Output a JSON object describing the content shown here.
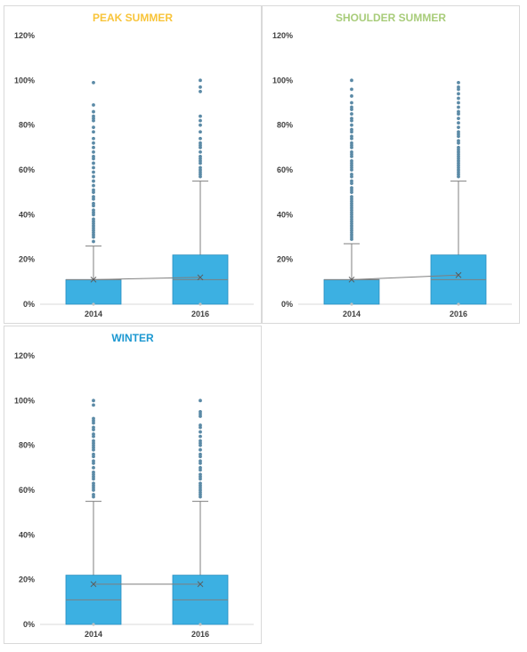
{
  "colors": {
    "box_fill": "#3cb0e2",
    "box_stroke": "#2a8fc0",
    "outlier": "#5b8aa6",
    "whisker": "#7f7f7f",
    "axis": "#d9d9d9"
  },
  "chart_data": [
    {
      "type": "box",
      "title": "PEAK SUMMER",
      "title_color": "#f8c43a",
      "categories": [
        "2014",
        "2016"
      ],
      "ylim": [
        0,
        120
      ],
      "yticks": [
        0,
        20,
        40,
        60,
        80,
        100,
        120
      ],
      "ytick_labels": [
        "0%",
        "20%",
        "40%",
        "60%",
        "80%",
        "100%",
        "120%"
      ],
      "boxes": [
        {
          "q1": 0,
          "median": 11,
          "q3": 11,
          "whisker_low": 0,
          "whisker_high": 26,
          "mean": 11,
          "outliers": [
            28,
            30,
            31,
            32,
            33,
            34,
            35,
            36,
            37,
            38,
            40,
            41,
            42,
            44,
            45,
            47,
            48,
            50,
            51,
            53,
            55,
            57,
            59,
            61,
            63,
            65,
            66,
            68,
            70,
            72,
            74,
            77,
            79,
            82,
            83,
            84,
            86,
            89,
            99
          ]
        },
        {
          "q1": 0,
          "median": 11,
          "q3": 22,
          "whisker_low": 0,
          "whisker_high": 55,
          "mean": 12,
          "outliers": [
            57,
            58,
            59,
            60,
            61,
            63,
            64,
            65,
            66,
            68,
            70,
            71,
            72,
            74,
            77,
            80,
            82,
            84,
            95,
            97,
            100
          ]
        }
      ]
    },
    {
      "type": "box",
      "title": "SHOULDER SUMMER",
      "title_color": "#a8cc7a",
      "categories": [
        "2014",
        "2016"
      ],
      "ylim": [
        0,
        120
      ],
      "yticks": [
        0,
        20,
        40,
        60,
        80,
        100,
        120
      ],
      "ytick_labels": [
        "0%",
        "20%",
        "40%",
        "60%",
        "80%",
        "100%",
        "120%"
      ],
      "boxes": [
        {
          "q1": 0,
          "median": 11,
          "q3": 11,
          "whisker_low": 0,
          "whisker_high": 27,
          "mean": 11,
          "outliers": [
            29,
            30,
            31,
            32,
            33,
            34,
            35,
            36,
            37,
            38,
            39,
            40,
            41,
            42,
            43,
            44,
            45,
            46,
            47,
            48,
            50,
            51,
            52,
            54,
            55,
            57,
            58,
            60,
            61,
            62,
            63,
            64,
            66,
            67,
            68,
            70,
            71,
            72,
            74,
            75,
            77,
            78,
            80,
            82,
            83,
            85,
            87,
            88,
            90,
            93,
            96,
            100
          ]
        },
        {
          "q1": 0,
          "median": 11,
          "q3": 22,
          "whisker_low": 0,
          "whisker_high": 55,
          "mean": 13,
          "outliers": [
            57,
            58,
            59,
            60,
            61,
            62,
            63,
            64,
            65,
            66,
            67,
            68,
            69,
            70,
            72,
            73,
            75,
            76,
            77,
            79,
            81,
            83,
            85,
            86,
            88,
            90,
            92,
            94,
            96,
            97,
            99
          ]
        }
      ]
    },
    {
      "type": "box",
      "title": "WINTER",
      "title_color": "#1c98d1",
      "categories": [
        "2014",
        "2016"
      ],
      "ylim": [
        0,
        120
      ],
      "yticks": [
        0,
        20,
        40,
        60,
        80,
        100,
        120
      ],
      "ytick_labels": [
        "0%",
        "20%",
        "40%",
        "60%",
        "80%",
        "100%",
        "120%"
      ],
      "boxes": [
        {
          "q1": 0,
          "median": 11,
          "q3": 22,
          "whisker_low": 0,
          "whisker_high": 55,
          "mean": 18,
          "outliers": [
            57,
            58,
            60,
            61,
            62,
            63,
            65,
            66,
            67,
            68,
            70,
            72,
            73,
            75,
            76,
            78,
            79,
            80,
            81,
            82,
            84,
            85,
            87,
            88,
            90,
            91,
            92,
            98,
            100
          ]
        },
        {
          "q1": 0,
          "median": 11,
          "q3": 22,
          "whisker_low": 0,
          "whisker_high": 55,
          "mean": 18,
          "outliers": [
            57,
            58,
            59,
            60,
            61,
            62,
            63,
            65,
            66,
            67,
            69,
            70,
            72,
            73,
            75,
            76,
            78,
            80,
            81,
            82,
            84,
            86,
            88,
            89,
            93,
            94,
            95,
            100
          ]
        }
      ]
    }
  ]
}
